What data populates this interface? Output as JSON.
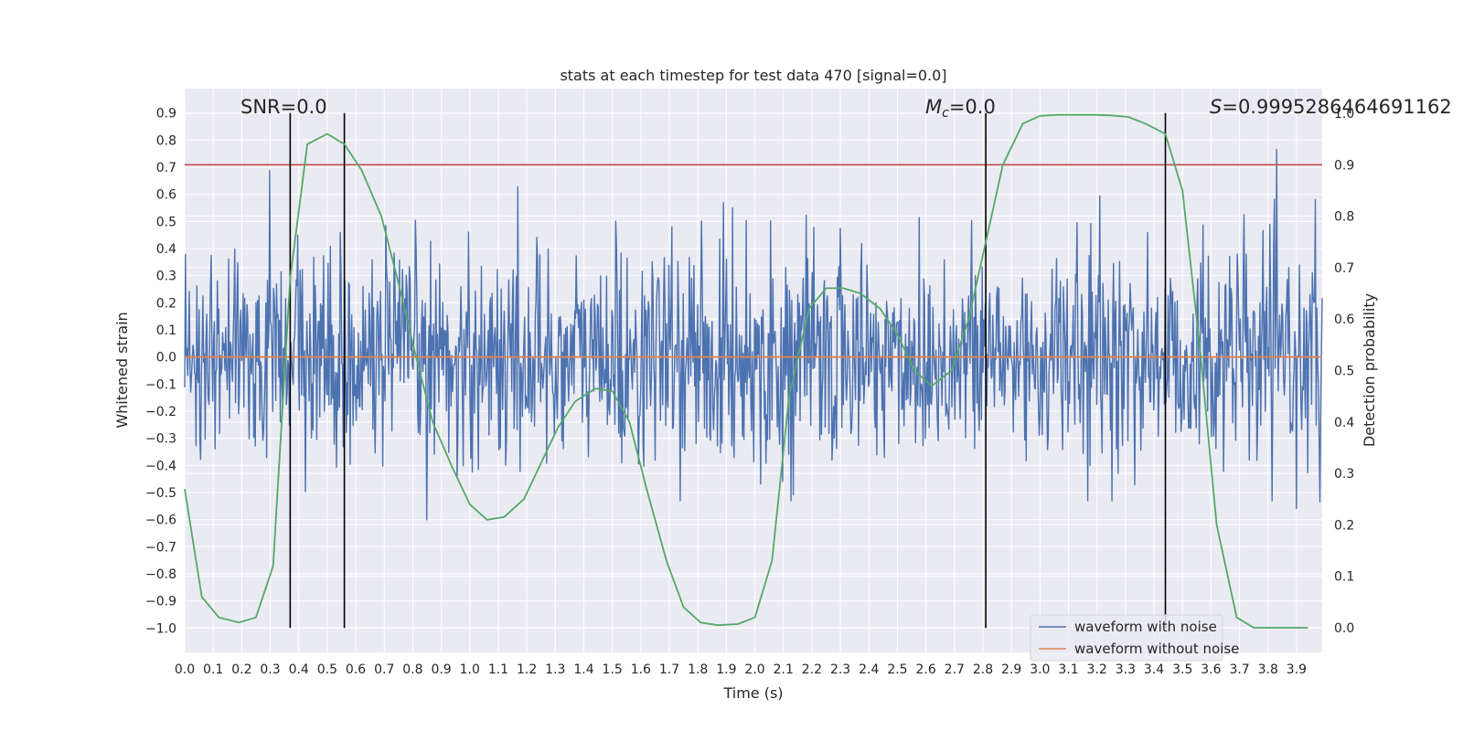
{
  "chart_data": {
    "type": "line",
    "title": "stats at each timestep for test data 470 [signal=0.0]",
    "xlabel": "Time (s)",
    "ylabel": "Whitened strain",
    "y2label": "Detection probability",
    "xlim": [
      0.0,
      3.99
    ],
    "ylim": [
      -1.09,
      0.99
    ],
    "y2lim": [
      -0.048,
      1.048
    ],
    "x_ticks": [
      "0.0",
      "0.1",
      "0.2",
      "0.3",
      "0.4",
      "0.5",
      "0.6",
      "0.7",
      "0.8",
      "0.9",
      "1.0",
      "1.1",
      "1.2",
      "1.3",
      "1.4",
      "1.5",
      "1.6",
      "1.7",
      "1.8",
      "1.9",
      "2.0",
      "2.1",
      "2.2",
      "2.3",
      "2.4",
      "2.5",
      "2.6",
      "2.7",
      "2.8",
      "2.9",
      "3.0",
      "3.1",
      "3.2",
      "3.3",
      "3.4",
      "3.5",
      "3.6",
      "3.7",
      "3.8",
      "3.9"
    ],
    "y_ticks": [
      "−1.0",
      "−0.9",
      "−0.8",
      "−0.7",
      "−0.6",
      "−0.5",
      "−0.4",
      "−0.3",
      "−0.2",
      "−0.1",
      "0.0",
      "0.1",
      "0.2",
      "0.3",
      "0.4",
      "0.5",
      "0.6",
      "0.7",
      "0.8",
      "0.9"
    ],
    "y2_ticks": [
      "0.0",
      "0.1",
      "0.2",
      "0.3",
      "0.4",
      "0.5",
      "0.6",
      "0.7",
      "0.8",
      "0.9",
      "1.0"
    ],
    "annotations": {
      "snr": "SNR=0.0",
      "mc_symbol": "M",
      "mc_sub": "c",
      "mc_value": "=0.0",
      "s_symbol": "S",
      "s_value": "=0.9995286464691162"
    },
    "threshold_line": {
      "axis": "y2",
      "value": 0.9,
      "color": "#c44e52"
    },
    "vertical_lines": [
      0.37,
      0.56,
      2.81,
      3.44
    ],
    "vertical_line_range": [
      -1.0,
      0.9
    ],
    "grid": true,
    "legend_position": "lower right",
    "series": [
      {
        "name": "waveform with noise",
        "color": "#4c72b0",
        "axis": "y",
        "style": "noise",
        "seed": 470,
        "x_range": [
          0.0,
          3.99
        ],
        "n_points": 1500
      },
      {
        "name": "waveform without noise",
        "color": "#dd8452",
        "axis": "y",
        "x": [
          0.0,
          3.99
        ],
        "values": [
          0.0,
          0.0
        ]
      },
      {
        "name": "",
        "color": "#55a868",
        "axis": "y2",
        "x": [
          0.0,
          0.06,
          0.12,
          0.19,
          0.25,
          0.31,
          0.37,
          0.43,
          0.5,
          0.56,
          0.62,
          0.69,
          0.75,
          0.81,
          0.87,
          0.94,
          1.0,
          1.06,
          1.12,
          1.19,
          1.25,
          1.31,
          1.37,
          1.44,
          1.5,
          1.56,
          1.62,
          1.69,
          1.75,
          1.81,
          1.87,
          1.94,
          2.0,
          2.06,
          2.12,
          2.19,
          2.25,
          2.31,
          2.37,
          2.44,
          2.5,
          2.56,
          2.62,
          2.69,
          2.75,
          2.81,
          2.87,
          2.94,
          3.0,
          3.06,
          3.12,
          3.19,
          3.25,
          3.31,
          3.37,
          3.44,
          3.5,
          3.56,
          3.62,
          3.69,
          3.75,
          3.81,
          3.87,
          3.94
        ],
        "values": [
          0.27,
          0.06,
          0.02,
          0.01,
          0.02,
          0.12,
          0.68,
          0.94,
          0.96,
          0.94,
          0.89,
          0.8,
          0.67,
          0.53,
          0.4,
          0.31,
          0.24,
          0.21,
          0.215,
          0.25,
          0.32,
          0.39,
          0.44,
          0.465,
          0.46,
          0.4,
          0.27,
          0.13,
          0.04,
          0.01,
          0.005,
          0.007,
          0.02,
          0.13,
          0.45,
          0.62,
          0.66,
          0.66,
          0.65,
          0.62,
          0.57,
          0.5,
          0.47,
          0.5,
          0.6,
          0.75,
          0.9,
          0.98,
          0.995,
          0.997,
          0.997,
          0.997,
          0.996,
          0.993,
          0.98,
          0.96,
          0.85,
          0.55,
          0.2,
          0.02,
          0.0,
          0.0,
          0.0,
          0.0
        ]
      }
    ]
  }
}
